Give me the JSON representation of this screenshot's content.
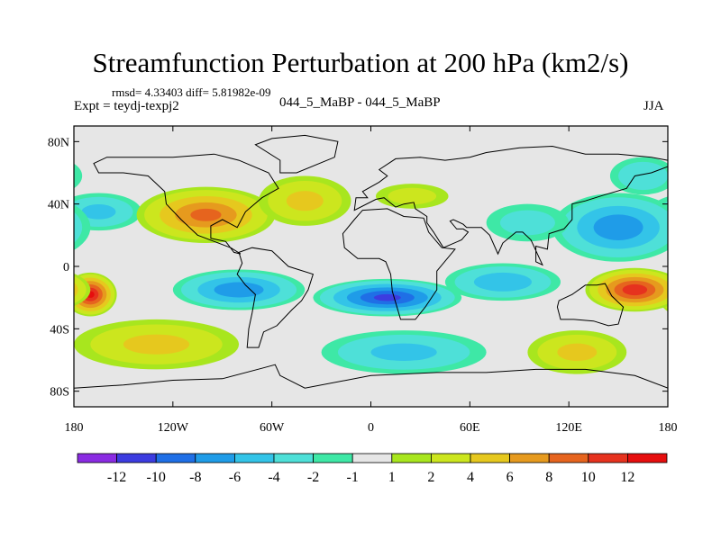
{
  "header": {
    "title": "Streamfunction Perturbation at 200 hPa (km2/s)",
    "stats": "rmsd= 4.33403 diff= 5.81982e-09",
    "experiment": "Expt = teydj-texpj2",
    "center_label": "044_5_MaBP - 044_5_MaBP",
    "season": "JJA"
  },
  "chart_data": {
    "type": "heatmap",
    "title": "Streamfunction Perturbation at 200 hPa (km2/s)",
    "xlabel": "",
    "ylabel": "",
    "x_ticks": [
      "180",
      "120W",
      "60W",
      "0",
      "60E",
      "120E",
      "180"
    ],
    "x_tick_values": [
      -180,
      -120,
      -60,
      0,
      60,
      120,
      180
    ],
    "y_ticks": [
      "80N",
      "40N",
      "0",
      "40S",
      "80S"
    ],
    "y_tick_values": [
      80,
      40,
      0,
      -40,
      -80
    ],
    "xlim": [
      -180,
      180
    ],
    "ylim": [
      -90,
      90
    ],
    "colorbar": {
      "labels": [
        "-12",
        "-10",
        "-8",
        "-6",
        "-4",
        "-2",
        "-1",
        "1",
        "2",
        "4",
        "6",
        "8",
        "10",
        "12"
      ],
      "levels": [
        -12,
        -10,
        -8,
        -6,
        -4,
        -2,
        -1,
        1,
        2,
        4,
        6,
        8,
        10,
        12
      ],
      "colors": [
        "#8a2be2",
        "#3c3ce0",
        "#1f6fe6",
        "#1f9ce8",
        "#33c4e8",
        "#4ee0d8",
        "#3ee8a6",
        "#e6e6e6",
        "#a8e61e",
        "#cce61e",
        "#e6c81e",
        "#e69a1e",
        "#e6641e",
        "#e6321e",
        "#e60e0e"
      ]
    },
    "blobs": [
      {
        "lon": -165,
        "lat": 35,
        "value": -4,
        "rx": 26,
        "ry": 12
      },
      {
        "lon": -100,
        "lat": 33,
        "value": 8,
        "rx": 42,
        "ry": 18
      },
      {
        "lon": -40,
        "lat": 42,
        "value": 4,
        "rx": 28,
        "ry": 16
      },
      {
        "lon": 25,
        "lat": 45,
        "value": 2,
        "rx": 22,
        "ry": 8
      },
      {
        "lon": 150,
        "lat": 25,
        "value": -7,
        "rx": 40,
        "ry": 22
      },
      {
        "lon": 165,
        "lat": 58,
        "value": -3,
        "rx": 20,
        "ry": 12
      },
      {
        "lon": 95,
        "lat": 28,
        "value": -2,
        "rx": 25,
        "ry": 12
      },
      {
        "lon": -170,
        "lat": -18,
        "value": 12,
        "rx": 16,
        "ry": 14
      },
      {
        "lon": 160,
        "lat": -15,
        "value": 11,
        "rx": 30,
        "ry": 14
      },
      {
        "lon": 10,
        "lat": -20,
        "value": -10,
        "rx": 45,
        "ry": 12
      },
      {
        "lon": -80,
        "lat": -15,
        "value": -7,
        "rx": 40,
        "ry": 13
      },
      {
        "lon": 80,
        "lat": -10,
        "value": -5,
        "rx": 35,
        "ry": 12
      },
      {
        "lon": -130,
        "lat": -50,
        "value": 4,
        "rx": 50,
        "ry": 16
      },
      {
        "lon": 20,
        "lat": -55,
        "value": -4,
        "rx": 50,
        "ry": 14
      },
      {
        "lon": 125,
        "lat": -55,
        "value": 4,
        "rx": 30,
        "ry": 14
      }
    ]
  },
  "colors": {
    "background": "#ffffff",
    "land_outline": "#000000",
    "zero_band": "#e6e6e6"
  }
}
